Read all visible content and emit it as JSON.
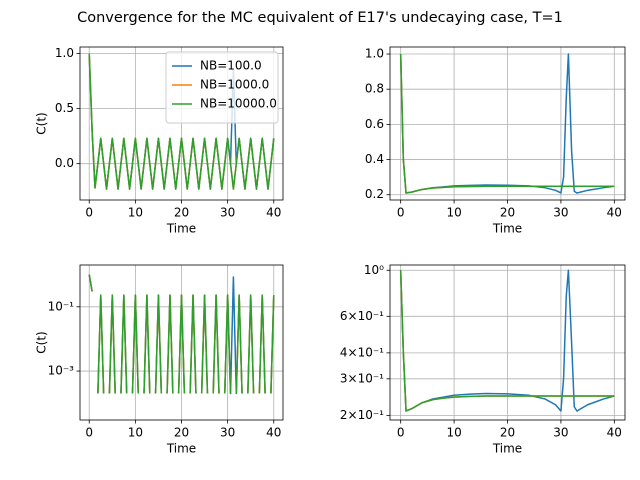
{
  "title": "Convergence for the MC equivalent of E17's undecaying case, T=1",
  "chart_data": [
    {
      "type": "line",
      "xlabel": "Time",
      "ylabel": "C(t)",
      "grid": true,
      "legend": "upper right",
      "x": [
        0,
        0.625,
        1.25,
        1.875,
        2.5,
        3.125,
        3.75,
        4.375,
        5,
        5.625,
        6.25,
        6.875,
        7.5,
        8.125,
        8.75,
        9.375,
        10,
        10.625,
        11.25,
        11.875,
        12.5,
        13.125,
        13.75,
        14.375,
        15,
        15.625,
        16.25,
        16.875,
        17.5,
        18.125,
        18.75,
        19.375,
        20,
        20.625,
        21.25,
        21.875,
        22.5,
        23.125,
        23.75,
        24.375,
        25,
        25.625,
        26.25,
        26.875,
        27.5,
        28.125,
        28.75,
        29.375,
        30,
        30.625,
        31.25,
        31.875,
        32.5,
        33.125,
        33.75,
        34.375,
        35,
        35.625,
        36.25,
        36.875,
        37.5,
        38.125,
        38.75,
        39.375,
        40
      ],
      "series": [
        {
          "name": "NB=100.0",
          "color": "#1f77b4",
          "values": [
            1.0,
            0.3,
            -0.22,
            0,
            0.23,
            0,
            -0.23,
            0,
            0.23,
            0,
            -0.23,
            0,
            0.23,
            0,
            -0.23,
            0,
            0.23,
            0,
            -0.23,
            0,
            0.23,
            0,
            -0.23,
            0,
            0.23,
            0,
            -0.23,
            0,
            0.23,
            0,
            -0.23,
            0,
            0.23,
            0,
            -0.23,
            0,
            0.23,
            0,
            -0.23,
            0,
            0.23,
            0,
            -0.23,
            0,
            0.23,
            0,
            -0.23,
            0,
            0.23,
            0,
            0.85,
            0,
            0.23,
            0,
            -0.23,
            0,
            0.23,
            0,
            -0.23,
            0,
            0.23,
            0,
            -0.23,
            0,
            0.23
          ]
        },
        {
          "name": "NB=1000.0",
          "color": "#ff7f0e",
          "values": [
            1.0,
            0.3,
            -0.22,
            0,
            0.23,
            0,
            -0.23,
            0,
            0.23,
            0,
            -0.23,
            0,
            0.23,
            0,
            -0.23,
            0,
            0.23,
            0,
            -0.23,
            0,
            0.23,
            0,
            -0.23,
            0,
            0.23,
            0,
            -0.23,
            0,
            0.23,
            0,
            -0.23,
            0,
            0.23,
            0,
            -0.23,
            0,
            0.23,
            0,
            -0.23,
            0,
            0.23,
            0,
            -0.23,
            0,
            0.23,
            0,
            -0.23,
            0,
            0.23,
            0,
            -0.23,
            0,
            0.23,
            0,
            -0.23,
            0,
            0.23,
            0,
            -0.23,
            0,
            0.23,
            0,
            -0.23,
            0,
            0.23
          ]
        },
        {
          "name": "NB=10000.0",
          "color": "#2ca02c",
          "values": [
            1.0,
            0.3,
            -0.22,
            0,
            0.23,
            0,
            -0.23,
            0,
            0.23,
            0,
            -0.23,
            0,
            0.23,
            0,
            -0.23,
            0,
            0.23,
            0,
            -0.23,
            0,
            0.23,
            0,
            -0.23,
            0,
            0.23,
            0,
            -0.23,
            0,
            0.23,
            0,
            -0.23,
            0,
            0.23,
            0,
            -0.23,
            0,
            0.23,
            0,
            -0.23,
            0,
            0.23,
            0,
            -0.23,
            0,
            0.23,
            0,
            -0.23,
            0,
            0.23,
            0,
            -0.23,
            0,
            0.23,
            0,
            -0.23,
            0,
            0.23,
            0,
            -0.23,
            0,
            0.23,
            0,
            -0.23,
            0,
            0.23
          ]
        }
      ],
      "xlim": [
        -2,
        42
      ],
      "ylim": [
        -0.33,
        1.06
      ],
      "xticks": [
        0,
        10,
        20,
        30,
        40
      ],
      "yticks": [
        {
          "value": 0,
          "label": "0.0"
        },
        0.5,
        {
          "value": 1,
          "label": "1.0"
        }
      ]
    },
    {
      "type": "line",
      "xlabel": "Time",
      "grid": true,
      "x": [
        0,
        0.5,
        1,
        2,
        4,
        6,
        8,
        10,
        13,
        16,
        20,
        24,
        27,
        29,
        30,
        30.5,
        31,
        31.4,
        32,
        32.5,
        33,
        35,
        38,
        40
      ],
      "series": [
        {
          "color": "#1f77b4",
          "values": [
            1.0,
            0.4,
            0.21,
            0.215,
            0.23,
            0.24,
            0.245,
            0.25,
            0.253,
            0.255,
            0.254,
            0.25,
            0.24,
            0.225,
            0.21,
            0.3,
            0.75,
            1.0,
            0.45,
            0.22,
            0.21,
            0.225,
            0.24,
            0.248
          ]
        },
        {
          "color": "#ff7f0e",
          "values": [
            1.0,
            0.4,
            0.21,
            0.215,
            0.23,
            0.238,
            0.242,
            0.245,
            0.247,
            0.248,
            0.248,
            0.248,
            0.248,
            0.248,
            0.248,
            0.248,
            0.248,
            0.248,
            0.248,
            0.248,
            0.248,
            0.248,
            0.248,
            0.248
          ]
        },
        {
          "color": "#2ca02c",
          "values": [
            1.0,
            0.4,
            0.21,
            0.215,
            0.23,
            0.238,
            0.242,
            0.245,
            0.247,
            0.248,
            0.248,
            0.248,
            0.248,
            0.248,
            0.248,
            0.248,
            0.248,
            0.248,
            0.248,
            0.248,
            0.248,
            0.248,
            0.248,
            0.248
          ]
        }
      ],
      "xlim": [
        -2,
        42
      ],
      "ylim": [
        0.17,
        1.04
      ],
      "xticks": [
        0,
        10,
        20,
        30,
        40
      ],
      "yticks": [
        0.2,
        0.4,
        0.6,
        0.8,
        {
          "value": 1,
          "label": "1.0"
        }
      ]
    },
    {
      "type": "line",
      "xlabel": "Time",
      "ylabel": "C(t)",
      "grid": true,
      "log_y": true,
      "x": [
        0,
        0.625,
        1.25,
        1.875,
        2.5,
        3.125,
        3.75,
        4.375,
        5,
        5.625,
        6.25,
        6.875,
        7.5,
        8.125,
        8.75,
        9.375,
        10,
        10.625,
        11.25,
        11.875,
        12.5,
        13.125,
        13.75,
        14.375,
        15,
        15.625,
        16.25,
        16.875,
        17.5,
        18.125,
        18.75,
        19.375,
        20,
        20.625,
        21.25,
        21.875,
        22.5,
        23.125,
        23.75,
        24.375,
        25,
        25.625,
        26.25,
        26.875,
        27.5,
        28.125,
        28.75,
        29.375,
        30,
        30.625,
        31.25,
        31.875,
        32.5,
        33.125,
        33.75,
        34.375,
        35,
        35.625,
        36.25,
        36.875,
        37.5,
        38.125,
        38.75,
        39.375,
        40
      ],
      "series": [
        {
          "color": "#1f77b4",
          "values": [
            1.0,
            0.3,
            null,
            0.0002,
            0.23,
            0.0002,
            null,
            0.0002,
            0.23,
            0.0002,
            null,
            0.0002,
            0.23,
            0.0002,
            null,
            0.0002,
            0.23,
            0.0002,
            null,
            0.0002,
            0.23,
            0.0002,
            null,
            0.0002,
            0.23,
            0.0002,
            null,
            0.0002,
            0.23,
            0.0002,
            null,
            0.0002,
            0.23,
            0.0002,
            null,
            0.0002,
            0.23,
            0.0002,
            null,
            0.0002,
            0.23,
            0.0002,
            null,
            0.0002,
            0.23,
            0.0002,
            null,
            0.0002,
            0.23,
            0.0002,
            0.85,
            0.0002,
            0.23,
            0.0002,
            null,
            0.0002,
            0.23,
            0.0002,
            null,
            0.0002,
            0.23,
            0.0002,
            null,
            0.0002,
            0.23
          ]
        },
        {
          "color": "#ff7f0e",
          "values": [
            1.0,
            0.3,
            null,
            0.0002,
            0.23,
            0.0002,
            null,
            0.0002,
            0.23,
            0.0002,
            null,
            0.0002,
            0.23,
            0.0002,
            null,
            0.0002,
            0.23,
            0.0002,
            null,
            0.0002,
            0.23,
            0.0002,
            null,
            0.0002,
            0.23,
            0.0002,
            null,
            0.0002,
            0.23,
            0.0002,
            null,
            0.0002,
            0.23,
            0.0002,
            null,
            0.0002,
            0.23,
            0.0002,
            null,
            0.0002,
            0.23,
            0.0002,
            null,
            0.0002,
            0.23,
            0.0002,
            null,
            0.0002,
            0.23,
            0.0002,
            null,
            0.0002,
            0.23,
            0.0002,
            null,
            0.0002,
            0.23,
            0.0002,
            null,
            0.0002,
            0.23,
            0.0002,
            null,
            0.0002,
            0.23
          ]
        },
        {
          "color": "#2ca02c",
          "values": [
            1.0,
            0.3,
            null,
            0.0002,
            0.23,
            0.0002,
            null,
            0.0002,
            0.23,
            0.0002,
            null,
            0.0002,
            0.23,
            0.0002,
            null,
            0.0002,
            0.23,
            0.0002,
            null,
            0.0002,
            0.23,
            0.0002,
            null,
            0.0002,
            0.23,
            0.0002,
            null,
            0.0002,
            0.23,
            0.0002,
            null,
            0.0002,
            0.23,
            0.0002,
            null,
            0.0002,
            0.23,
            0.0002,
            null,
            0.0002,
            0.23,
            0.0002,
            null,
            0.0002,
            0.23,
            0.0002,
            null,
            0.0002,
            0.23,
            0.0002,
            null,
            0.0002,
            0.23,
            0.0002,
            null,
            0.0002,
            0.23,
            0.0002,
            null,
            0.0002,
            0.23,
            0.0002,
            null,
            0.0002,
            0.23
          ]
        }
      ],
      "xlim": [
        -2,
        42
      ],
      "ylim": [
        3e-05,
        2
      ],
      "xticks": [
        0,
        10,
        20,
        30,
        40
      ],
      "yticks": [
        {
          "value": 0.001,
          "label": "10⁻³"
        },
        {
          "value": 0.1,
          "label": "10⁻¹"
        }
      ]
    },
    {
      "type": "line",
      "xlabel": "Time",
      "grid": true,
      "log_y": true,
      "x": [
        0,
        0.5,
        1,
        2,
        4,
        6,
        8,
        10,
        13,
        16,
        20,
        24,
        27,
        29,
        30,
        30.5,
        31,
        31.4,
        32,
        32.5,
        33,
        35,
        38,
        40
      ],
      "series": [
        {
          "color": "#1f77b4",
          "values": [
            1.0,
            0.4,
            0.21,
            0.215,
            0.23,
            0.24,
            0.245,
            0.25,
            0.253,
            0.255,
            0.254,
            0.25,
            0.24,
            0.225,
            0.21,
            0.3,
            0.75,
            1.0,
            0.45,
            0.22,
            0.21,
            0.225,
            0.24,
            0.248
          ]
        },
        {
          "color": "#ff7f0e",
          "values": [
            1.0,
            0.4,
            0.21,
            0.215,
            0.23,
            0.238,
            0.242,
            0.245,
            0.247,
            0.248,
            0.248,
            0.248,
            0.248,
            0.248,
            0.248,
            0.248,
            0.248,
            0.248,
            0.248,
            0.248,
            0.248,
            0.248,
            0.248,
            0.248
          ]
        },
        {
          "color": "#2ca02c",
          "values": [
            1.0,
            0.4,
            0.21,
            0.215,
            0.23,
            0.238,
            0.242,
            0.245,
            0.247,
            0.248,
            0.248,
            0.248,
            0.248,
            0.248,
            0.248,
            0.248,
            0.248,
            0.248,
            0.248,
            0.248,
            0.248,
            0.248,
            0.248,
            0.248
          ]
        }
      ],
      "xlim": [
        -2,
        42
      ],
      "ylim": [
        0.19,
        1.06
      ],
      "xticks": [
        0,
        10,
        20,
        30,
        40
      ],
      "yticks": [
        {
          "value": 0.2,
          "label": "2×10⁻¹"
        },
        {
          "value": 0.3,
          "label": "3×10⁻¹"
        },
        {
          "value": 0.4,
          "label": "4×10⁻¹"
        },
        {
          "value": 0.6,
          "label": "6×10⁻¹"
        },
        {
          "value": 1,
          "label": "10⁰"
        }
      ]
    }
  ]
}
